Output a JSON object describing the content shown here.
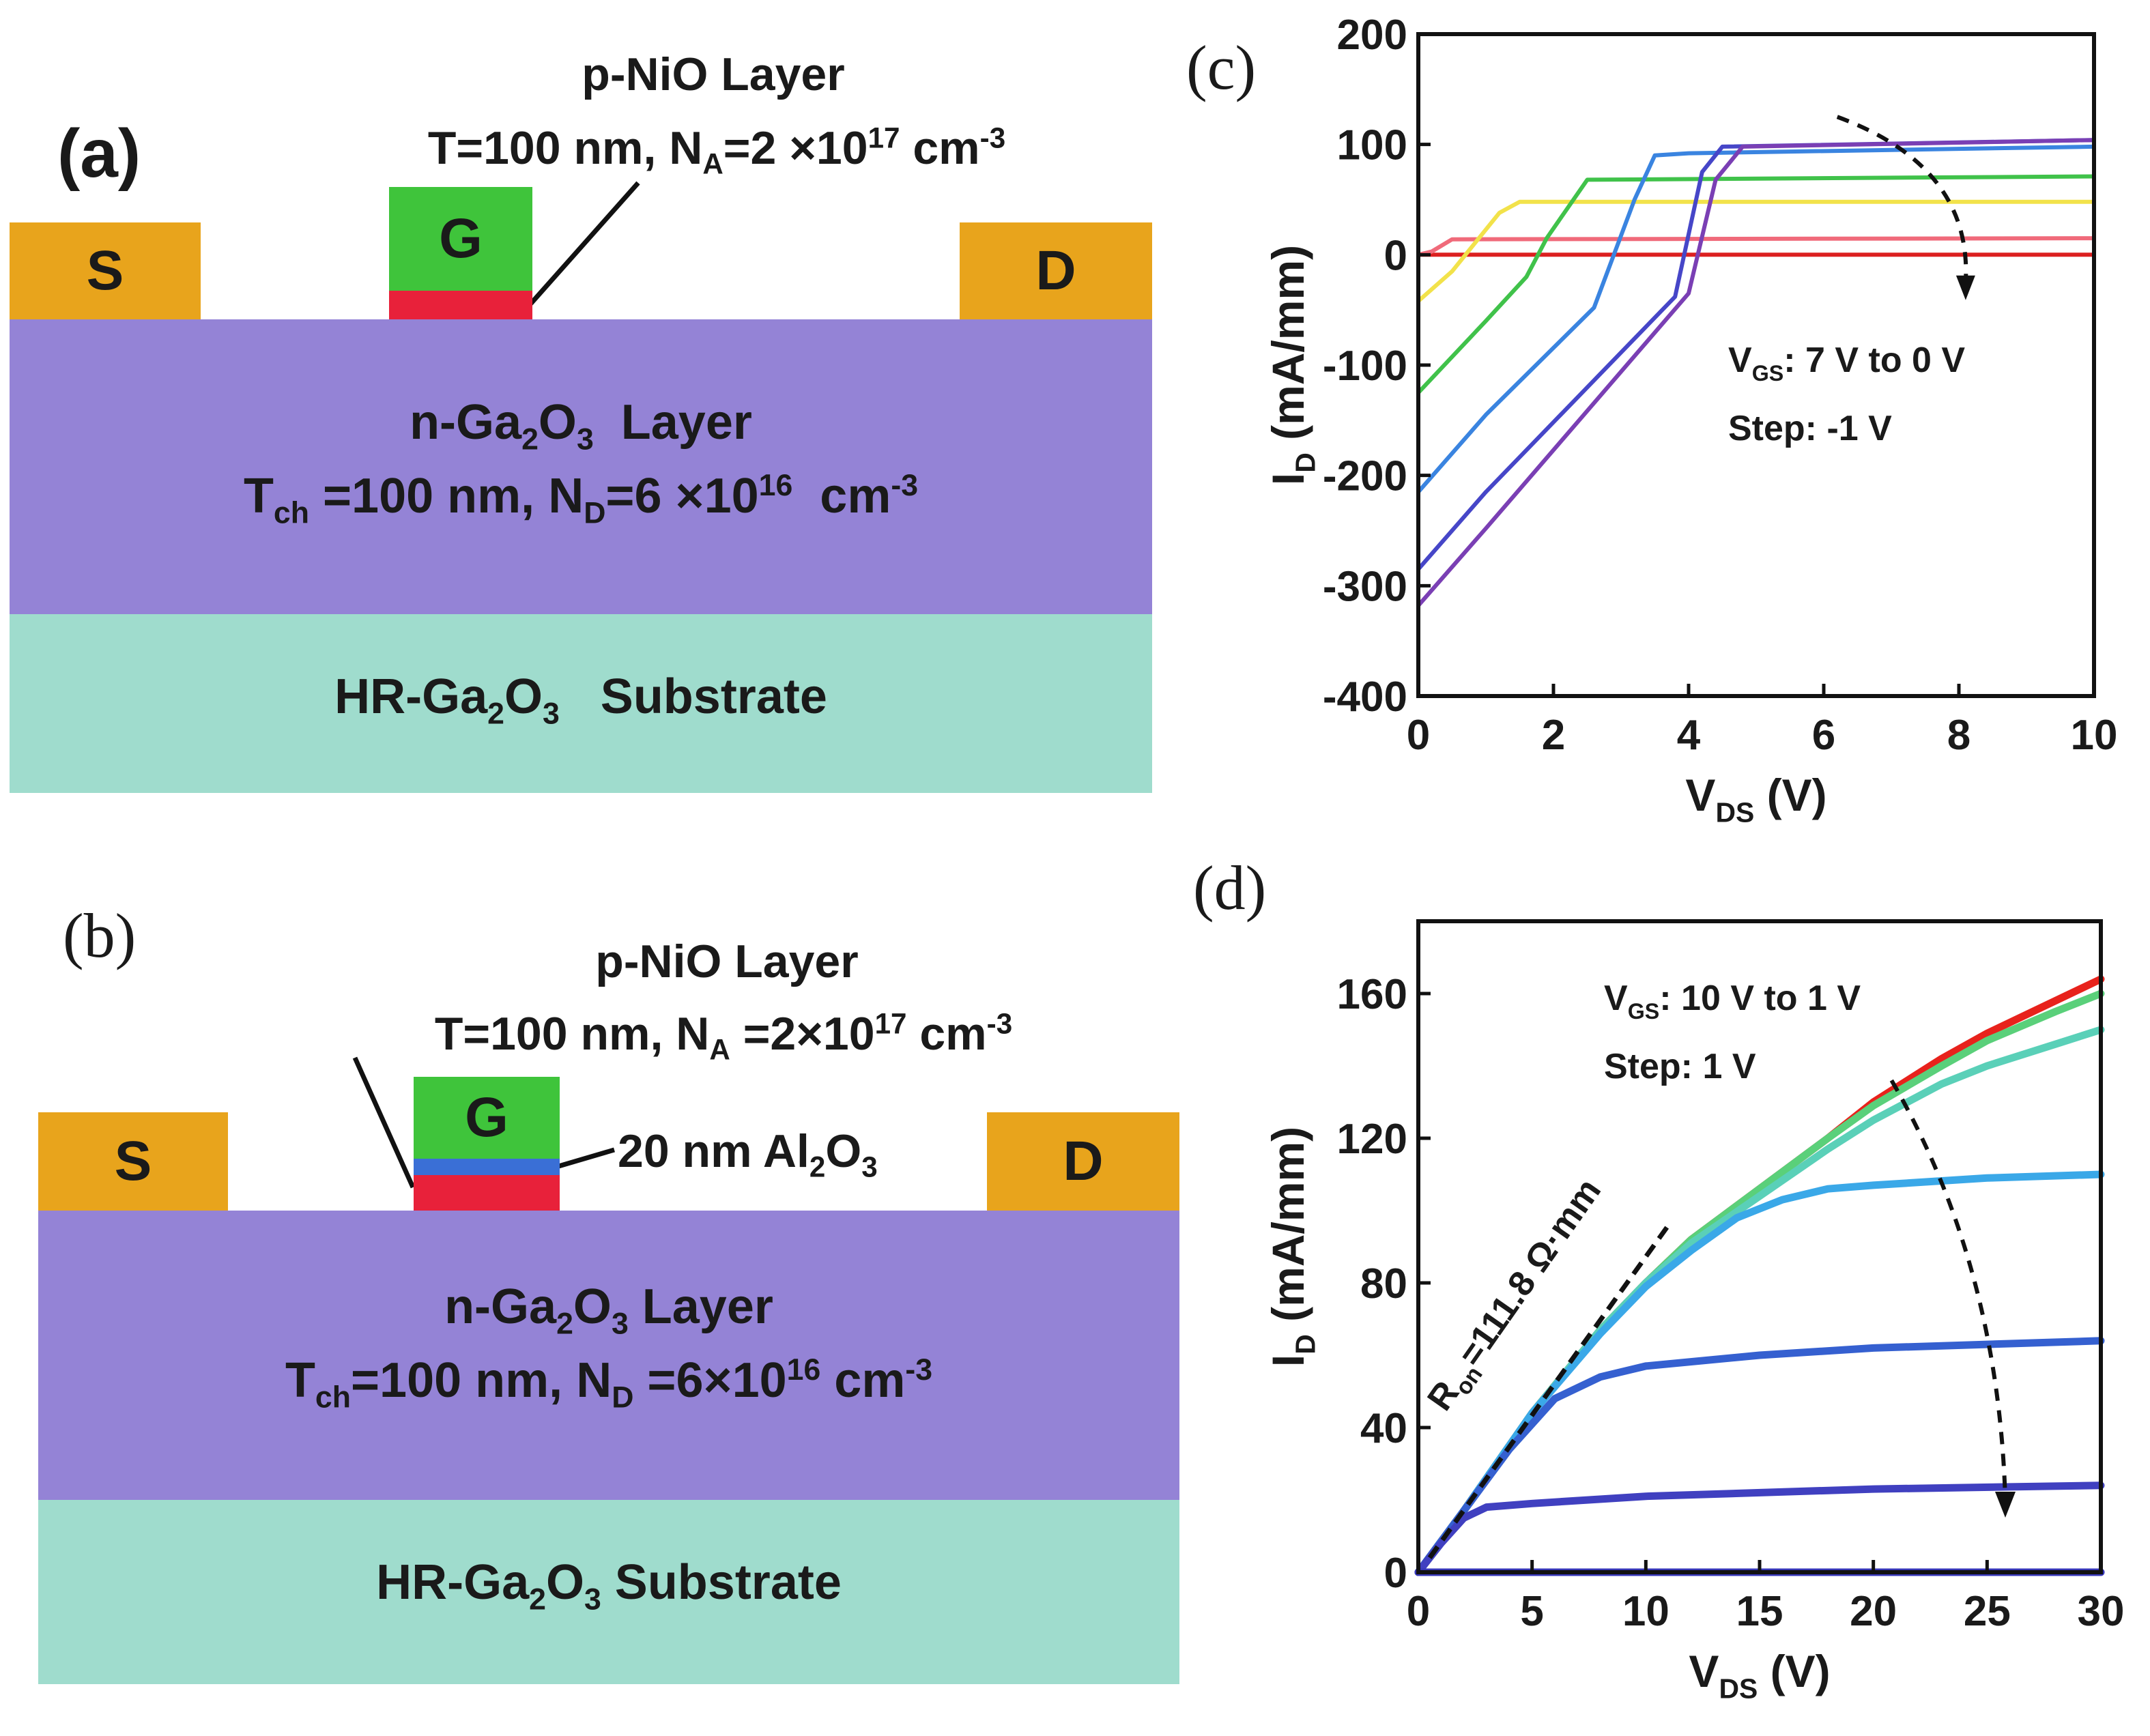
{
  "panel_a": {
    "label": "(a)",
    "top_label": "p-NiO Layer",
    "gate_spec": "T=100 nm, N_A=2×10^17 cm^-3",
    "gate_spec_parts": {
      "t": "T=100 nm, N",
      "a_sub": "A",
      "eq": "=2 ×10",
      "exp": "17",
      "unit": " cm",
      "unit_exp": "-3"
    },
    "source": "S",
    "gate": "G",
    "drain": "D",
    "channel_title_parts": {
      "pre": "n-Ga",
      "s1": "2",
      "mid": "O",
      "s2": "3",
      "post": "  Layer"
    },
    "channel_spec_parts": {
      "t": "T",
      "t_sub": "ch",
      "mid": " =100 nm, N",
      "d_sub": "D",
      "eq": "=6 ×10",
      "exp": "16",
      "unit": "  cm",
      "unit_exp": "-3"
    },
    "substrate_parts": {
      "pre": "HR-Ga",
      "s1": "2",
      "mid": "O",
      "s2": "3",
      "post": "   Substrate"
    },
    "colors": {
      "contact": "#e8a41c",
      "gate": "#3fc43b",
      "nio": "#e8213a",
      "channel": "#9483d6",
      "substrate": "#9fdccd"
    }
  },
  "panel_b": {
    "label": "(b)",
    "top_label": "p-NiO Layer",
    "gate_spec_parts": {
      "t": "T=100 nm, N",
      "a_sub": "A",
      "eq": " =2×10",
      "exp": "17",
      "unit": " cm",
      "unit_exp": "-3"
    },
    "source": "S",
    "gate": "G",
    "drain": "D",
    "oxide_parts": {
      "pre": "20 nm Al",
      "s1": "2",
      "mid": "O",
      "s2": "3"
    },
    "channel_title_parts": {
      "pre": "n-Ga",
      "s1": "2",
      "mid": "O",
      "s2": "3",
      "post": " Layer"
    },
    "channel_spec_parts": {
      "t": "T",
      "t_sub": "ch",
      "mid": "=100 nm, N",
      "d_sub": "D",
      "eq": " =6×10",
      "exp": "16",
      "unit": " cm",
      "unit_exp": "-3"
    },
    "substrate_parts": {
      "pre": "HR-Ga",
      "s1": "2",
      "mid": "O",
      "s2": "3",
      "post": " Substrate"
    },
    "colors": {
      "oxide": "#3a6fd6"
    }
  },
  "chart_data": [
    {
      "panel": "(c)",
      "type": "line",
      "xlabel": "V_DS (V)",
      "ylabel": "I_D (mA/mm)",
      "xlim": [
        0,
        10
      ],
      "ylim": [
        -400,
        200
      ],
      "xticks": [
        0,
        2,
        4,
        6,
        8,
        10
      ],
      "yticks": [
        200,
        100,
        0,
        -100,
        -200,
        -300,
        -400
      ],
      "annotation": [
        "V_GS: 7 V to 0 V",
        "Step: -1 V"
      ],
      "series": [
        {
          "color": "#dc2020",
          "points": [
            [
              0,
              0
            ],
            [
              10,
              0
            ]
          ]
        },
        {
          "color": "#f06a7a",
          "points": [
            [
              0,
              0
            ],
            [
              0.2,
              3
            ],
            [
              0.5,
              14
            ],
            [
              10,
              15
            ]
          ]
        },
        {
          "color": "#f2e24a",
          "points": [
            [
              0,
              -42
            ],
            [
              0.5,
              -15
            ],
            [
              1.2,
              38
            ],
            [
              1.5,
              48
            ],
            [
              10,
              48
            ]
          ]
        },
        {
          "color": "#40c24a",
          "points": [
            [
              0,
              -125
            ],
            [
              1,
              -60
            ],
            [
              1.6,
              -20
            ],
            [
              1.9,
              15
            ],
            [
              2.5,
              68
            ],
            [
              10,
              71
            ]
          ]
        },
        {
          "color": "#3a84e0",
          "points": [
            [
              0,
              -215
            ],
            [
              1,
              -145
            ],
            [
              2.6,
              -48
            ],
            [
              3.2,
              50
            ],
            [
              3.5,
              90
            ],
            [
              4,
              92
            ],
            [
              10,
              98
            ]
          ]
        },
        {
          "color": "#4646c8",
          "points": [
            [
              0,
              -285
            ],
            [
              1,
              -215
            ],
            [
              3.8,
              -38
            ],
            [
              4.2,
              75
            ],
            [
              4.5,
              98
            ],
            [
              10,
              104
            ]
          ]
        },
        {
          "color": "#7a3fb4",
          "points": [
            [
              0,
              -318
            ],
            [
              1,
              -248
            ],
            [
              4,
              -35
            ],
            [
              4.4,
              68
            ],
            [
              4.8,
              98
            ],
            [
              10,
              104
            ]
          ]
        }
      ]
    },
    {
      "panel": "(d)",
      "type": "line",
      "xlabel": "V_DS (V)",
      "ylabel": "I_D (mA/mm)",
      "xlim": [
        0,
        30
      ],
      "ylim": [
        0,
        180
      ],
      "xticks": [
        0,
        5,
        10,
        15,
        20,
        25,
        30
      ],
      "yticks": [
        0,
        40,
        80,
        120,
        160
      ],
      "annotation": [
        "V_GS: 10 V to 1 V",
        "Step: 1 V"
      ],
      "ron_label": "R_on=111.8 Ω·mm",
      "series": [
        {
          "color": "#e8221c",
          "points": [
            [
              0,
              0
            ],
            [
              2,
              17
            ],
            [
              5,
              44
            ],
            [
              8,
              67
            ],
            [
              10,
              80
            ],
            [
              12,
              92
            ],
            [
              15,
              106
            ],
            [
              18,
              120
            ],
            [
              20,
              130
            ],
            [
              23,
              142
            ],
            [
              25,
              149
            ],
            [
              28,
              158
            ],
            [
              30,
              164
            ]
          ]
        },
        {
          "color": "#5ad07a",
          "points": [
            [
              0,
              0
            ],
            [
              2,
              17
            ],
            [
              5,
              44
            ],
            [
              8,
              67
            ],
            [
              10,
              80
            ],
            [
              12,
              92
            ],
            [
              15,
              106
            ],
            [
              18,
              120
            ],
            [
              20,
              129
            ],
            [
              23,
              140
            ],
            [
              25,
              147
            ],
            [
              28,
              155
            ],
            [
              30,
              160
            ]
          ]
        },
        {
          "color": "#5ad0b8",
          "points": [
            [
              0,
              0
            ],
            [
              2,
              17
            ],
            [
              5,
              44
            ],
            [
              8,
              67
            ],
            [
              10,
              80
            ],
            [
              12,
              91
            ],
            [
              15,
              104
            ],
            [
              18,
              117
            ],
            [
              20,
              125
            ],
            [
              23,
              135
            ],
            [
              25,
              140
            ],
            [
              28,
              146
            ],
            [
              30,
              150
            ]
          ]
        },
        {
          "color": "#3aa8e8",
          "points": [
            [
              0,
              0
            ],
            [
              2,
              17
            ],
            [
              5,
              44
            ],
            [
              8,
              66
            ],
            [
              10,
              79
            ],
            [
              12,
              89
            ],
            [
              14,
              98
            ],
            [
              16,
              103
            ],
            [
              18,
              106
            ],
            [
              20,
              107
            ],
            [
              25,
              109
            ],
            [
              30,
              110
            ]
          ]
        },
        {
          "color": "#3560d0",
          "points": [
            [
              0,
              0
            ],
            [
              2,
              17
            ],
            [
              4,
              34
            ],
            [
              6,
              48
            ],
            [
              8,
              54
            ],
            [
              10,
              57
            ],
            [
              15,
              60
            ],
            [
              20,
              62
            ],
            [
              25,
              63
            ],
            [
              30,
              64
            ]
          ]
        },
        {
          "color": "#4040c0",
          "points": [
            [
              0,
              0
            ],
            [
              1,
              8
            ],
            [
              2,
              15
            ],
            [
              3,
              18
            ],
            [
              5,
              19
            ],
            [
              10,
              21
            ],
            [
              20,
              23
            ],
            [
              30,
              24
            ]
          ]
        },
        {
          "color": "#3636b8",
          "points": [
            [
              0,
              0
            ],
            [
              30,
              0
            ]
          ]
        }
      ]
    }
  ]
}
